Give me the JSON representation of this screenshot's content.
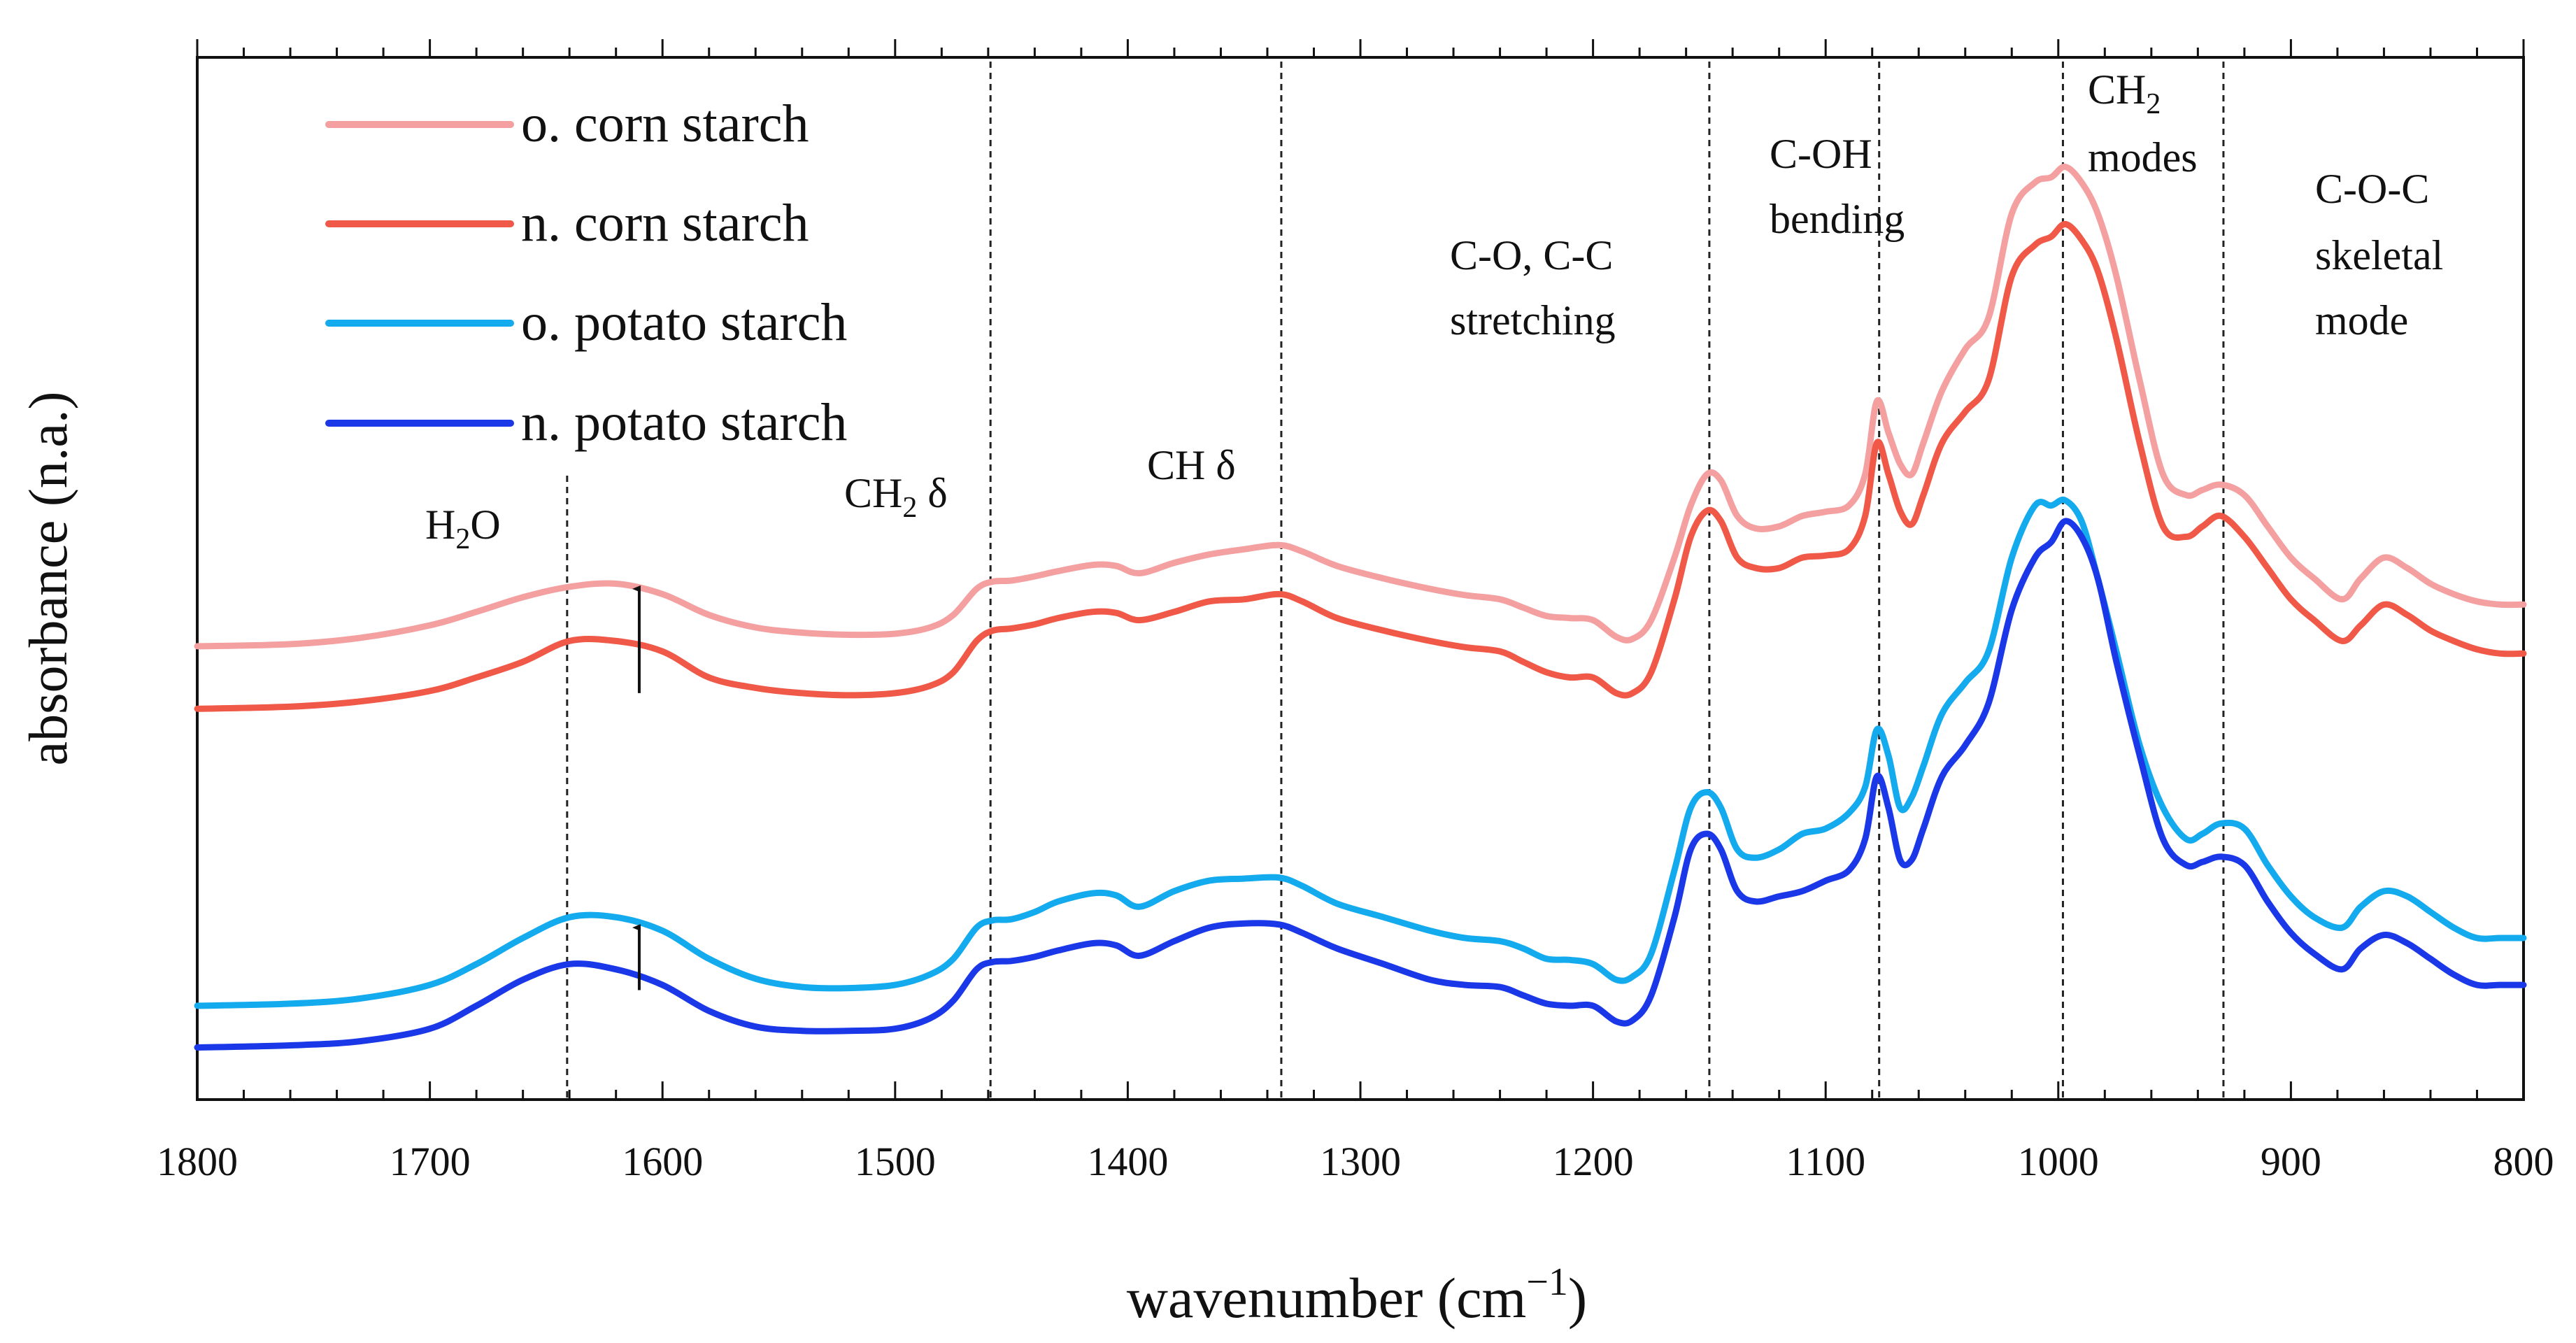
{
  "chart_data": {
    "type": "line",
    "xlabel": "wavenumber (cm",
    "xlabel_sup": "−1",
    "xlabel_close": ")",
    "ylabel": "absorbance (n.a.)",
    "xlim": [
      1800,
      800
    ],
    "x_reversed": true,
    "ylim": [
      0,
      1
    ],
    "y_ticks_shown": false,
    "x_ticks": [
      1800,
      1700,
      1600,
      1500,
      1400,
      1300,
      1200,
      1100,
      1000,
      900,
      800
    ],
    "legend_position": "top-left",
    "series": [
      {
        "name": "o. corn starch",
        "color": "#f4a0a0",
        "x": [
          1800,
          1760,
          1730,
          1700,
          1680,
          1660,
          1640,
          1620,
          1600,
          1580,
          1560,
          1540,
          1520,
          1500,
          1485,
          1475,
          1465,
          1458,
          1450,
          1440,
          1430,
          1415,
          1405,
          1395,
          1380,
          1365,
          1350,
          1335,
          1325,
          1310,
          1290,
          1270,
          1255,
          1240,
          1230,
          1220,
          1210,
          1200,
          1190,
          1183,
          1175,
          1165,
          1158,
          1151,
          1145,
          1138,
          1130,
          1120,
          1110,
          1100,
          1090,
          1083,
          1078,
          1073,
          1068,
          1063,
          1058,
          1050,
          1040,
          1030,
          1020,
          1010,
          1003,
          997,
          990,
          983,
          975,
          965,
          955,
          945,
          938,
          930,
          920,
          910,
          900,
          890,
          878,
          870,
          860,
          850,
          840,
          830,
          820,
          810,
          800
        ],
        "y": [
          0.435,
          0.437,
          0.443,
          0.455,
          0.468,
          0.482,
          0.492,
          0.495,
          0.485,
          0.465,
          0.453,
          0.448,
          0.446,
          0.447,
          0.453,
          0.465,
          0.49,
          0.497,
          0.498,
          0.502,
          0.507,
          0.513,
          0.512,
          0.505,
          0.515,
          0.523,
          0.528,
          0.532,
          0.526,
          0.512,
          0.5,
          0.49,
          0.484,
          0.48,
          0.472,
          0.464,
          0.462,
          0.46,
          0.444,
          0.442,
          0.46,
          0.52,
          0.57,
          0.6,
          0.594,
          0.56,
          0.548,
          0.55,
          0.56,
          0.564,
          0.57,
          0.6,
          0.67,
          0.64,
          0.61,
          0.6,
          0.63,
          0.68,
          0.72,
          0.75,
          0.85,
          0.88,
          0.885,
          0.895,
          0.88,
          0.85,
          0.79,
          0.69,
          0.6,
          0.58,
          0.585,
          0.59,
          0.58,
          0.55,
          0.52,
          0.5,
          0.48,
          0.5,
          0.52,
          0.51,
          0.495,
          0.485,
          0.478,
          0.475,
          0.475
        ]
      },
      {
        "name": "n. corn starch",
        "color": "#f05848",
        "x": [
          1800,
          1760,
          1730,
          1700,
          1680,
          1660,
          1640,
          1620,
          1600,
          1580,
          1560,
          1540,
          1520,
          1500,
          1485,
          1475,
          1465,
          1458,
          1450,
          1440,
          1430,
          1415,
          1405,
          1395,
          1380,
          1365,
          1350,
          1335,
          1325,
          1310,
          1290,
          1270,
          1255,
          1240,
          1230,
          1220,
          1210,
          1200,
          1190,
          1183,
          1175,
          1165,
          1158,
          1151,
          1145,
          1138,
          1130,
          1120,
          1110,
          1100,
          1090,
          1083,
          1078,
          1073,
          1068,
          1063,
          1058,
          1050,
          1040,
          1030,
          1020,
          1010,
          1003,
          997,
          990,
          983,
          975,
          965,
          955,
          945,
          938,
          930,
          920,
          910,
          900,
          890,
          878,
          870,
          860,
          850,
          840,
          830,
          820,
          810,
          800
        ],
        "y": [
          0.375,
          0.377,
          0.382,
          0.392,
          0.405,
          0.42,
          0.44,
          0.44,
          0.43,
          0.405,
          0.395,
          0.39,
          0.388,
          0.39,
          0.397,
          0.41,
          0.44,
          0.45,
          0.452,
          0.456,
          0.462,
          0.468,
          0.467,
          0.46,
          0.468,
          0.478,
          0.48,
          0.485,
          0.478,
          0.462,
          0.45,
          0.44,
          0.434,
          0.43,
          0.42,
          0.41,
          0.405,
          0.405,
          0.39,
          0.39,
          0.41,
          0.48,
          0.54,
          0.565,
          0.555,
          0.52,
          0.51,
          0.51,
          0.52,
          0.522,
          0.528,
          0.56,
          0.63,
          0.6,
          0.565,
          0.552,
          0.58,
          0.63,
          0.66,
          0.69,
          0.79,
          0.82,
          0.828,
          0.84,
          0.825,
          0.795,
          0.73,
          0.63,
          0.55,
          0.54,
          0.55,
          0.56,
          0.54,
          0.51,
          0.48,
          0.46,
          0.44,
          0.455,
          0.475,
          0.465,
          0.45,
          0.44,
          0.432,
          0.428,
          0.428
        ]
      },
      {
        "name": "o. potato starch",
        "color": "#14aaee",
        "x": [
          1800,
          1760,
          1730,
          1700,
          1680,
          1660,
          1640,
          1620,
          1600,
          1580,
          1560,
          1540,
          1520,
          1500,
          1485,
          1475,
          1465,
          1458,
          1450,
          1440,
          1430,
          1415,
          1405,
          1395,
          1380,
          1365,
          1350,
          1335,
          1325,
          1310,
          1290,
          1270,
          1255,
          1240,
          1230,
          1220,
          1210,
          1200,
          1190,
          1183,
          1175,
          1165,
          1158,
          1151,
          1145,
          1138,
          1130,
          1120,
          1110,
          1100,
          1090,
          1083,
          1078,
          1073,
          1068,
          1063,
          1058,
          1050,
          1040,
          1030,
          1020,
          1010,
          1003,
          997,
          990,
          983,
          975,
          965,
          955,
          945,
          938,
          930,
          920,
          910,
          900,
          890,
          878,
          870,
          860,
          850,
          840,
          830,
          820,
          810,
          800
        ],
        "y": [
          0.09,
          0.092,
          0.097,
          0.11,
          0.13,
          0.155,
          0.175,
          0.175,
          0.162,
          0.135,
          0.116,
          0.108,
          0.107,
          0.11,
          0.12,
          0.135,
          0.165,
          0.172,
          0.173,
          0.18,
          0.19,
          0.198,
          0.196,
          0.185,
          0.2,
          0.21,
          0.212,
          0.213,
          0.205,
          0.188,
          0.175,
          0.162,
          0.155,
          0.152,
          0.145,
          0.135,
          0.134,
          0.13,
          0.115,
          0.118,
          0.14,
          0.22,
          0.28,
          0.295,
          0.28,
          0.24,
          0.232,
          0.24,
          0.255,
          0.26,
          0.275,
          0.3,
          0.355,
          0.33,
          0.28,
          0.29,
          0.32,
          0.37,
          0.4,
          0.43,
          0.52,
          0.57,
          0.57,
          0.575,
          0.555,
          0.5,
          0.43,
          0.34,
          0.28,
          0.25,
          0.255,
          0.265,
          0.26,
          0.225,
          0.195,
          0.175,
          0.165,
          0.185,
          0.2,
          0.195,
          0.18,
          0.165,
          0.155,
          0.155,
          0.155
        ]
      },
      {
        "name": "n. potato starch",
        "color": "#1a38e8",
        "x": [
          1800,
          1760,
          1730,
          1700,
          1680,
          1660,
          1640,
          1620,
          1600,
          1580,
          1560,
          1540,
          1520,
          1500,
          1485,
          1475,
          1465,
          1458,
          1450,
          1440,
          1430,
          1415,
          1405,
          1395,
          1380,
          1365,
          1350,
          1335,
          1325,
          1310,
          1290,
          1270,
          1255,
          1240,
          1230,
          1220,
          1210,
          1200,
          1190,
          1183,
          1175,
          1165,
          1158,
          1151,
          1145,
          1138,
          1130,
          1120,
          1110,
          1100,
          1090,
          1083,
          1078,
          1073,
          1068,
          1063,
          1058,
          1050,
          1040,
          1030,
          1020,
          1010,
          1003,
          997,
          990,
          983,
          975,
          965,
          955,
          945,
          938,
          930,
          920,
          910,
          900,
          890,
          878,
          870,
          860,
          850,
          840,
          830,
          820,
          810,
          800
        ],
        "y": [
          0.05,
          0.052,
          0.056,
          0.068,
          0.09,
          0.115,
          0.13,
          0.125,
          0.11,
          0.085,
          0.07,
          0.066,
          0.066,
          0.068,
          0.078,
          0.095,
          0.125,
          0.132,
          0.133,
          0.137,
          0.143,
          0.15,
          0.148,
          0.138,
          0.152,
          0.165,
          0.169,
          0.168,
          0.16,
          0.145,
          0.13,
          0.115,
          0.11,
          0.108,
          0.1,
          0.092,
          0.09,
          0.09,
          0.075,
          0.076,
          0.1,
          0.175,
          0.24,
          0.255,
          0.24,
          0.2,
          0.19,
          0.195,
          0.2,
          0.21,
          0.22,
          0.25,
          0.31,
          0.28,
          0.23,
          0.23,
          0.26,
          0.31,
          0.34,
          0.38,
          0.47,
          0.52,
          0.535,
          0.555,
          0.54,
          0.5,
          0.42,
          0.33,
          0.25,
          0.225,
          0.228,
          0.233,
          0.225,
          0.19,
          0.16,
          0.14,
          0.125,
          0.145,
          0.158,
          0.15,
          0.135,
          0.12,
          0.11,
          0.11,
          0.11
        ]
      }
    ],
    "reference_lines": [
      1641,
      1459,
      1334,
      1150,
      1077,
      998,
      929
    ],
    "annotations": [
      {
        "id": "h2o",
        "base": "H",
        "sub": "2",
        "tail": "O"
      },
      {
        "id": "ch2-delta",
        "base": "CH",
        "sub": "2",
        "tail": " δ"
      },
      {
        "id": "ch-delta",
        "text": "CH δ"
      },
      {
        "id": "co-cc-1",
        "text": "C-O, C-C"
      },
      {
        "id": "co-cc-2",
        "text": "stretching"
      },
      {
        "id": "coh-1",
        "text": "C-OH"
      },
      {
        "id": "coh-2",
        "text": "bending"
      },
      {
        "id": "ch2-modes-1",
        "base": "CH",
        "sub": "2",
        "tail": ""
      },
      {
        "id": "ch2-modes-2",
        "text": "modes"
      },
      {
        "id": "coc-1",
        "text": "C-O-C"
      },
      {
        "id": "coc-2",
        "text": "skeletal"
      },
      {
        "id": "coc-3",
        "text": "mode"
      }
    ],
    "arrows": [
      {
        "x": 1610,
        "y_from": 0.39,
        "y_to": 0.49
      },
      {
        "x": 1610,
        "y_from": 0.105,
        "y_to": 0.165
      }
    ]
  }
}
